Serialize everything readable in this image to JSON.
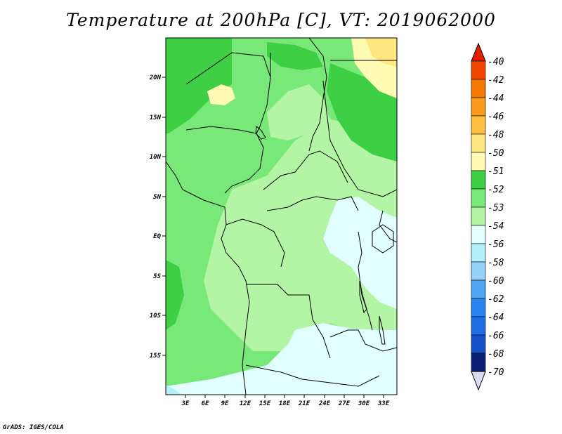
{
  "title": "Temperature at 200hPa [C], VT: 2019062000",
  "credit": "GrADS: IGES/COLA",
  "map": {
    "lon_range": [
      0,
      35
    ],
    "lat_range": [
      -20,
      25
    ],
    "lon_ticks": [
      "3E",
      "6E",
      "9E",
      "12E",
      "15E",
      "18E",
      "21E",
      "24E",
      "27E",
      "30E",
      "33E"
    ],
    "lat_ticks": [
      "20N",
      "15N",
      "10N",
      "5N",
      "EQ",
      "5S",
      "10S",
      "15S"
    ],
    "colors": {
      "c51": "#fffab4",
      "c50": "#ffe680",
      "c52": "#3ecf45",
      "c53": "#78e878",
      "c54": "#b4f5a5",
      "c56": "#e1ffff"
    }
  },
  "colorbar": {
    "labels": [
      "-40",
      "-42",
      "-44",
      "-46",
      "-48",
      "-50",
      "-51",
      "-52",
      "-53",
      "-54",
      "-56",
      "-58",
      "-60",
      "-62",
      "-64",
      "-66",
      "-68",
      "-70"
    ],
    "colors": [
      "#e61e00",
      "#f04600",
      "#f57800",
      "#fa9b19",
      "#ffc040",
      "#ffe680",
      "#fffab4",
      "#3ecf45",
      "#78e878",
      "#b4f5a5",
      "#e1ffff",
      "#b4f0fa",
      "#96d2fa",
      "#50a5f5",
      "#2882f0",
      "#1e6ee6",
      "#1450c8",
      "#0a1e78",
      "#dcdcf0"
    ]
  }
}
